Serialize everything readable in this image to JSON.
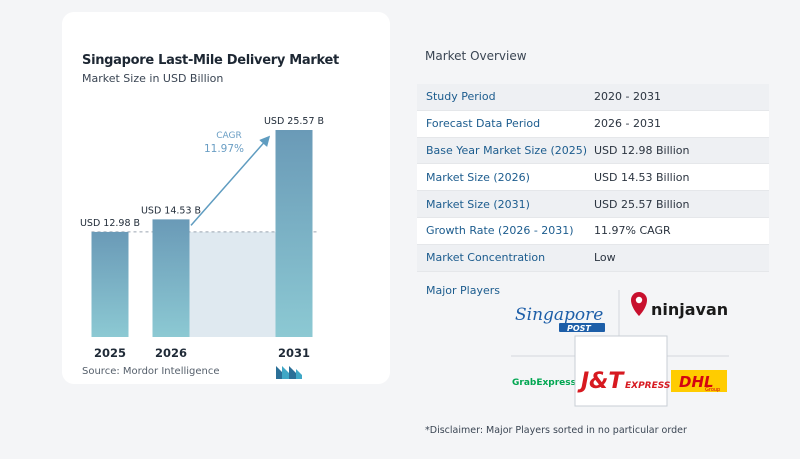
{
  "chart": {
    "title": "Singapore Last-Mile Delivery Market",
    "subtitle": "Market Size in USD Billion",
    "source": "Source:  Mordor Intelligence",
    "cagr_label": "CAGR",
    "cagr_value": "11.97%"
  },
  "chart_data": {
    "type": "bar",
    "title": "Singapore Last-Mile Delivery Market",
    "subtitle": "Market Size in USD Billion",
    "categories": [
      "2025",
      "2026",
      "2031"
    ],
    "values": [
      12.98,
      14.53,
      25.57
    ],
    "data_labels": [
      "USD 12.98 B",
      "USD 14.53 B",
      "USD 25.57 B"
    ],
    "annotation": "CAGR 11.97%",
    "ylim": [
      0,
      25.57
    ],
    "grid": false,
    "legend": "none",
    "colors": {
      "bar_top": "#6a9ab7",
      "bar_bottom": "#8cc9d3",
      "area": "#dfe9f0",
      "arrow": "#5f9cc0",
      "cagr": "#6a9ec4"
    }
  },
  "overview": {
    "title": "Market Overview",
    "rows": [
      {
        "label": "Study Period",
        "value": "2020 - 2031"
      },
      {
        "label": "Forecast Data Period",
        "value": "2026 - 2031"
      },
      {
        "label": "Base Year Market Size (2025)",
        "value": "USD 12.98 Billion"
      },
      {
        "label": "Market Size (2026)",
        "value": "USD 14.53 Billion"
      },
      {
        "label": "Market Size (2031)",
        "value": "USD 25.57 Billion"
      },
      {
        "label": "Growth Rate (2026 - 2031)",
        "value": "11.97% CAGR"
      },
      {
        "label": "Market Concentration",
        "value": "Low"
      }
    ],
    "players_label": "Major Players"
  },
  "players": [
    "Singapore Post",
    "Ninja Van",
    "GrabExpress",
    "J&T Express",
    "DHL Group"
  ],
  "logo_text": {
    "singpost_main": "Singapore",
    "singpost_sub": "POST",
    "ninjavan": "ninjavan",
    "grab": "GrabExpress",
    "jt_main": "J&T",
    "jt_sub": "EXPRESS",
    "dhl": "DHL",
    "dhl_sub": "Group"
  },
  "disclaimer": "*Disclaimer: Major Players sorted in no particular order"
}
